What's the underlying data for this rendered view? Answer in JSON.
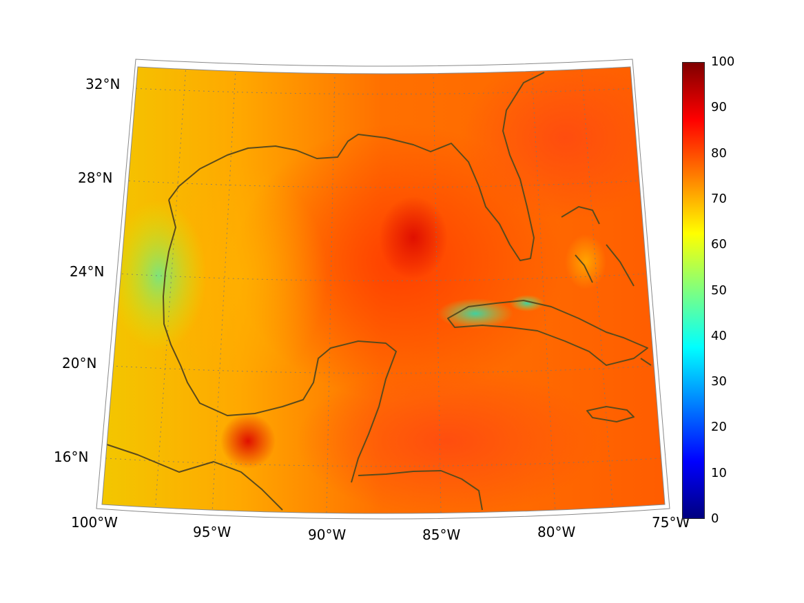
{
  "map": {
    "projection": "conic",
    "extent": {
      "lon": [
        -100,
        -75
      ],
      "lat": [
        14,
        33
      ]
    },
    "graticule": "dotted",
    "coastline_color": "#5a4a1c",
    "longitude_labels": [
      "100°W",
      "95°W",
      "90°W",
      "85°W",
      "80°W",
      "75°W"
    ],
    "latitude_labels": [
      "32°N",
      "28°N",
      "24°N",
      "20°N",
      "16°N"
    ],
    "field_description_colors": {
      "land_and_gulf_margins": "#f5c400",
      "central_gulf": "#ff4a00",
      "peak": "#e81a00",
      "low_values_near_coast": "#7ce36a"
    }
  },
  "colorbar": {
    "colormap": "jet",
    "range": [
      0,
      100
    ],
    "tick_labels": [
      "100",
      "90",
      "80",
      "70",
      "60",
      "50",
      "40",
      "30",
      "20",
      "10",
      "0"
    ],
    "colors": [
      "#7f0000",
      "#ff0000",
      "#ff7f00",
      "#ffff00",
      "#7fff7f",
      "#00ffff",
      "#007fff",
      "#0000ff",
      "#00007f"
    ]
  }
}
